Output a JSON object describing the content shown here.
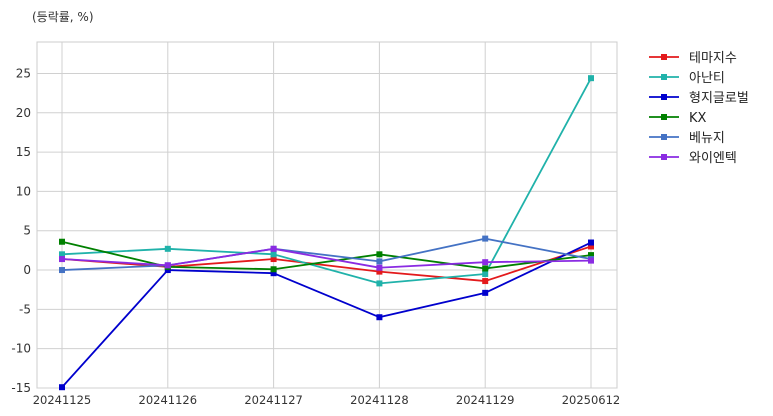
{
  "chart_data": {
    "type": "line",
    "unit_label": "(등락률, %)",
    "categories": [
      "20241125",
      "20241126",
      "20241127",
      "20241128",
      "20241129",
      "20250612"
    ],
    "ylim": [
      -15,
      29
    ],
    "yticks": [
      -15,
      -10,
      -5,
      0,
      5,
      10,
      15,
      20,
      25
    ],
    "grid": true,
    "legend_position": "right-outside",
    "series": [
      {
        "name": "테마지수",
        "color": "#e31a1c",
        "values": [
          1.4,
          0.4,
          1.4,
          -0.2,
          -1.4,
          3.0
        ]
      },
      {
        "name": "아난티",
        "color": "#20b2aa",
        "values": [
          2.0,
          2.7,
          2.0,
          -1.7,
          -0.5,
          24.4
        ]
      },
      {
        "name": "형지글로벌",
        "color": "#0000cd",
        "values": [
          -14.9,
          0.0,
          -0.4,
          -6.0,
          -2.9,
          3.5
        ]
      },
      {
        "name": "KX",
        "color": "#008000",
        "values": [
          3.6,
          0.4,
          0.1,
          2.0,
          0.2,
          1.9
        ]
      },
      {
        "name": "베뉴지",
        "color": "#4472c4",
        "values": [
          0.0,
          0.6,
          2.7,
          1.1,
          4.0,
          1.4
        ]
      },
      {
        "name": "와이엔텍",
        "color": "#8a2be2",
        "values": [
          1.4,
          0.6,
          2.7,
          0.3,
          1.0,
          1.2
        ]
      }
    ]
  }
}
